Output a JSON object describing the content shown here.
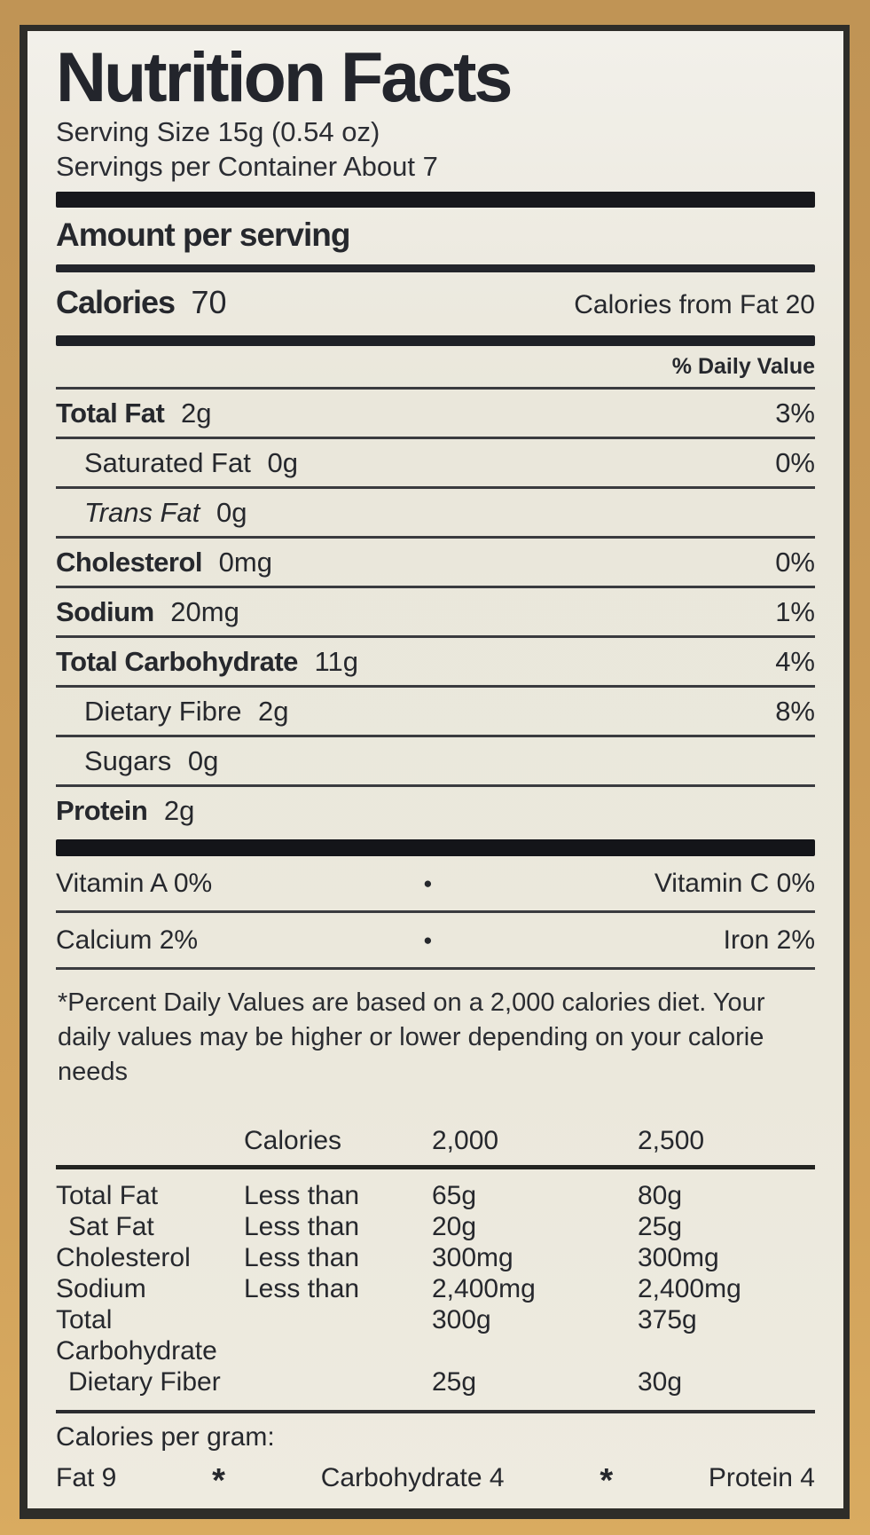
{
  "colors": {
    "background_cardboard": "#c89a58",
    "paper": "#ebe8dc",
    "ink": "#26282d",
    "bar": "#17181c"
  },
  "label": {
    "title": "Nutrition Facts",
    "serving_size": "Serving Size 15g (0.54 oz)",
    "servings_per_container": "Servings per Container About 7",
    "amount_per_serving": "Amount per serving",
    "calories": {
      "label": "Calories",
      "value": "70",
      "from_fat": "Calories from Fat 20"
    },
    "daily_value_header": "% Daily Value",
    "nutrients": [
      {
        "name": "Total Fat",
        "amount": "2g",
        "dv": "3%"
      },
      {
        "name": "Saturated Fat",
        "amount": "0g",
        "dv": "0%"
      },
      {
        "name": "Trans Fat",
        "amount": "0g",
        "dv": ""
      },
      {
        "name": "Cholesterol",
        "amount": "0mg",
        "dv": "0%"
      },
      {
        "name": "Sodium",
        "amount": "20mg",
        "dv": "1%"
      },
      {
        "name": "Total Carbohydrate",
        "amount": "11g",
        "dv": "4%"
      },
      {
        "name": "Dietary Fibre",
        "amount": "2g",
        "dv": "8%"
      },
      {
        "name": "Sugars",
        "amount": "0g",
        "dv": ""
      },
      {
        "name": "Protein",
        "amount": "2g",
        "dv": ""
      }
    ],
    "micronutrients": [
      {
        "left": "Vitamin A 0%",
        "right": "Vitamin C 0%",
        "bullet": "●"
      },
      {
        "left": "Calcium 2%",
        "right": "Iron 2%",
        "bullet": "●"
      }
    ],
    "footnote": "*Percent Daily Values are based on a 2,000 calories diet. Your daily values may be higher or lower depending on your calorie needs",
    "dv_table": {
      "header": {
        "calories": "Calories",
        "col_2000": "2,000",
        "col_2500": "2,500"
      },
      "rows": [
        {
          "name": "Total Fat",
          "qualifier": "Less than",
          "v2000": "65g",
          "v2500": "80g"
        },
        {
          "name": "Sat Fat",
          "qualifier": "Less than",
          "v2000": "20g",
          "v2500": "25g"
        },
        {
          "name": "Cholesterol",
          "qualifier": "Less than",
          "v2000": "300mg",
          "v2500": "300mg"
        },
        {
          "name": "Sodium",
          "qualifier": "Less than",
          "v2000": "2,400mg",
          "v2500": "2,400mg"
        },
        {
          "name": "Total Carbohydrate",
          "qualifier": "",
          "v2000": "300g",
          "v2500": "375g"
        },
        {
          "name": "Dietary Fiber",
          "qualifier": "",
          "v2000": "25g",
          "v2500": "30g"
        }
      ]
    },
    "calories_per_gram": {
      "label": "Calories per gram:",
      "fat": "Fat 9",
      "carbohydrate": "Carbohydrate 4",
      "protein": "Protein 4",
      "separator": "*"
    }
  }
}
